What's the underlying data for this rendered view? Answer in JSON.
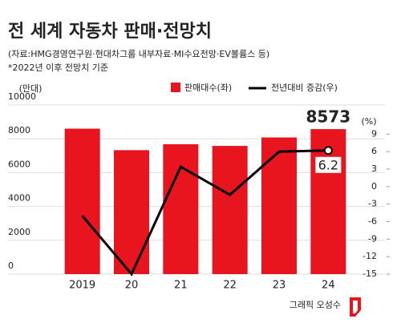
{
  "chart_data": {
    "type": "bar-line",
    "title": "전 세계 자동차 판매·전망치",
    "subtitle": "(자료:HMG경영연구원·현대차그룹 내부자료·MI수요전망·EV볼륨스 등)",
    "note": "*2022년 이후 전망치 기준",
    "y_unit": "(만대)",
    "y2_unit": "(%)",
    "credit": "그래픽 오성수",
    "categories": [
      "2019",
      "20",
      "21",
      "22",
      "23",
      "24"
    ],
    "series": [
      {
        "name": "판매대수(좌)",
        "color": "#e8141e",
        "values": [
          8600,
          7330,
          7680,
          7580,
          8080,
          8573
        ]
      },
      {
        "name": "전년대비 증감(우)",
        "color": "#000000",
        "axis": "y2",
        "values": [
          -5,
          -15,
          3.4,
          -1.4,
          6,
          6.2
        ]
      }
    ],
    "ylim": [
      0,
      10000
    ],
    "yticks": [
      0,
      2000,
      4000,
      6000,
      8000,
      10000
    ],
    "y2lim": [
      -15,
      14
    ],
    "y2ticks": [
      -15,
      -12,
      -9,
      -6,
      -3,
      0,
      3,
      6,
      9
    ],
    "grid": true
  }
}
